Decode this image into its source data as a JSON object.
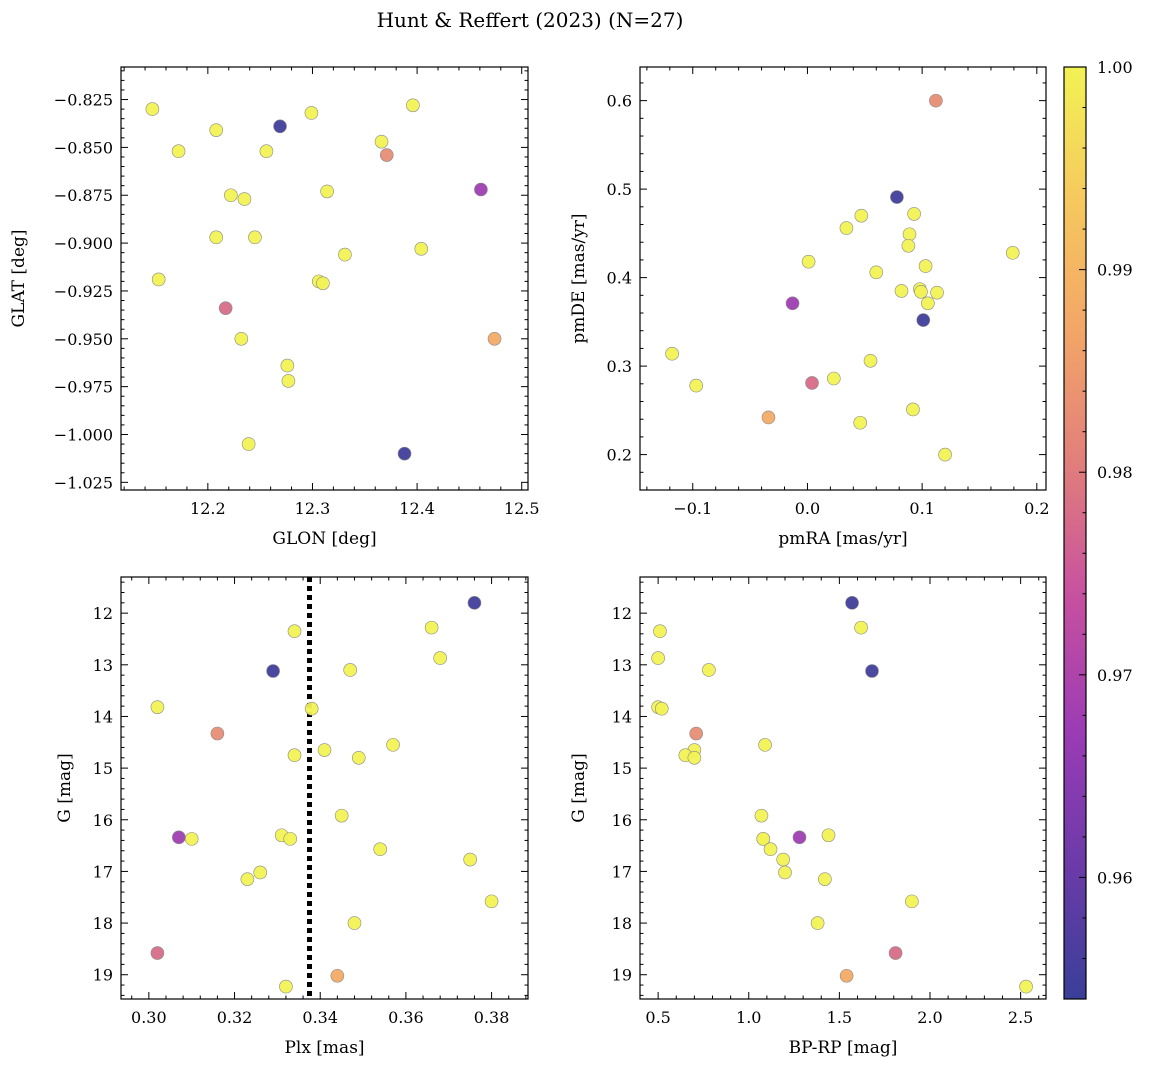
{
  "title": "Hunt & Reffert (2023) (N=27)",
  "colorbar": {
    "min": 0.954,
    "max": 1.0,
    "ticks": [
      0.96,
      0.97,
      0.98,
      0.99,
      1.0
    ],
    "tick_labels": [
      "0.96",
      "0.97",
      "0.98",
      "0.99",
      "1.00"
    ],
    "colormap": "plasma",
    "colors": [
      "#3a3f99",
      "#6a3ba8",
      "#993bb5",
      "#c650a0",
      "#e07d7c",
      "#f2a468",
      "#f6c95e",
      "#f2f254"
    ]
  },
  "stars": [
    {
      "glon": 12.147,
      "glat": -0.83,
      "pmra": -0.118,
      "pmde": 0.314,
      "plx": 0.302,
      "g": 13.82,
      "bprp": 0.5,
      "prob": 1.0
    },
    {
      "glon": 12.172,
      "glat": -0.852,
      "pmra": -0.097,
      "pmde": 0.278,
      "plx": 0.334,
      "g": 12.35,
      "bprp": 0.51,
      "prob": 1.0
    },
    {
      "glon": 12.208,
      "glat": -0.841,
      "pmra": 0.034,
      "pmde": 0.456,
      "plx": 0.347,
      "g": 13.1,
      "bprp": 0.78,
      "prob": 1.0
    },
    {
      "glon": 12.256,
      "glat": -0.852,
      "pmra": 0.047,
      "pmde": 0.47,
      "plx": 0.366,
      "g": 12.28,
      "bprp": 1.62,
      "prob": 1.0
    },
    {
      "glon": 12.299,
      "glat": -0.832,
      "pmra": 0.001,
      "pmde": 0.418,
      "plx": 0.368,
      "g": 12.87,
      "bprp": 0.5,
      "prob": 1.0
    },
    {
      "glon": 12.366,
      "glat": -0.847,
      "pmra": 0.093,
      "pmde": 0.472,
      "plx": 0.338,
      "g": 13.85,
      "bprp": 0.52,
      "prob": 1.0
    },
    {
      "glon": 12.396,
      "glat": -0.828,
      "pmra": 0.089,
      "pmde": 0.449,
      "plx": 0.357,
      "g": 14.55,
      "bprp": 1.09,
      "prob": 1.0
    },
    {
      "glon": 12.222,
      "glat": -0.875,
      "pmra": 0.088,
      "pmde": 0.436,
      "plx": 0.341,
      "g": 14.65,
      "bprp": 0.7,
      "prob": 1.0
    },
    {
      "glon": 12.235,
      "glat": -0.877,
      "pmra": 0.06,
      "pmde": 0.406,
      "plx": 0.334,
      "g": 14.75,
      "bprp": 0.65,
      "prob": 1.0
    },
    {
      "glon": 12.314,
      "glat": -0.873,
      "pmra": 0.103,
      "pmde": 0.413,
      "plx": 0.349,
      "g": 14.8,
      "bprp": 0.7,
      "prob": 1.0
    },
    {
      "glon": 12.208,
      "glat": -0.897,
      "pmra": 0.082,
      "pmde": 0.385,
      "plx": 0.345,
      "g": 15.92,
      "bprp": 1.07,
      "prob": 1.0
    },
    {
      "glon": 12.245,
      "glat": -0.897,
      "pmra": 0.098,
      "pmde": 0.387,
      "plx": 0.331,
      "g": 16.3,
      "bprp": 1.44,
      "prob": 1.0
    },
    {
      "glon": 12.153,
      "glat": -0.919,
      "pmra": 0.099,
      "pmde": 0.384,
      "plx": 0.31,
      "g": 16.37,
      "bprp": 1.08,
      "prob": 1.0
    },
    {
      "glon": 12.331,
      "glat": -0.906,
      "pmra": 0.113,
      "pmde": 0.383,
      "plx": 0.333,
      "g": 16.37,
      "bprp": 1.08,
      "prob": 1.0
    },
    {
      "glon": 12.404,
      "glat": -0.903,
      "pmra": 0.105,
      "pmde": 0.371,
      "plx": 0.354,
      "g": 16.57,
      "bprp": 1.12,
      "prob": 1.0
    },
    {
      "glon": 12.306,
      "glat": -0.92,
      "pmra": 0.179,
      "pmde": 0.428,
      "plx": 0.375,
      "g": 16.77,
      "bprp": 1.19,
      "prob": 1.0
    },
    {
      "glon": 12.31,
      "glat": -0.921,
      "pmra": 0.055,
      "pmde": 0.306,
      "plx": 0.326,
      "g": 17.02,
      "bprp": 1.2,
      "prob": 1.0
    },
    {
      "glon": 12.232,
      "glat": -0.95,
      "pmra": 0.023,
      "pmde": 0.286,
      "plx": 0.323,
      "g": 17.15,
      "bprp": 1.42,
      "prob": 1.0
    },
    {
      "glon": 12.276,
      "glat": -0.964,
      "pmra": 0.092,
      "pmde": 0.251,
      "plx": 0.38,
      "g": 17.58,
      "bprp": 1.9,
      "prob": 1.0
    },
    {
      "glon": 12.277,
      "glat": -0.972,
      "pmra": 0.046,
      "pmde": 0.236,
      "plx": 0.348,
      "g": 18.0,
      "bprp": 1.38,
      "prob": 1.0
    },
    {
      "glon": 12.239,
      "glat": -1.005,
      "pmra": 0.12,
      "pmde": 0.2,
      "plx": 0.332,
      "g": 19.23,
      "bprp": 2.53,
      "prob": 1.0
    },
    {
      "glon": 12.269,
      "glat": -0.839,
      "pmra": 0.078,
      "pmde": 0.491,
      "plx": 0.376,
      "g": 11.8,
      "bprp": 1.57,
      "prob": 0.955
    },
    {
      "glon": 12.388,
      "glat": -1.01,
      "pmra": 0.101,
      "pmde": 0.352,
      "plx": 0.329,
      "g": 13.12,
      "bprp": 1.68,
      "prob": 0.955
    },
    {
      "glon": 12.461,
      "glat": -0.872,
      "pmra": -0.013,
      "pmde": 0.371,
      "plx": 0.307,
      "g": 16.34,
      "bprp": 1.28,
      "prob": 0.968
    },
    {
      "glon": 12.217,
      "glat": -0.934,
      "pmra": 0.004,
      "pmde": 0.281,
      "plx": 0.302,
      "g": 18.58,
      "bprp": 1.81,
      "prob": 0.978
    },
    {
      "glon": 12.371,
      "glat": -0.854,
      "pmra": 0.112,
      "pmde": 0.6,
      "plx": 0.316,
      "g": 14.33,
      "bprp": 0.71,
      "prob": 0.983
    },
    {
      "glon": 12.474,
      "glat": -0.95,
      "pmra": -0.034,
      "pmde": 0.242,
      "plx": 0.344,
      "g": 19.02,
      "bprp": 1.54,
      "prob": 0.988
    }
  ],
  "chart_data": [
    {
      "type": "scatter",
      "x_field": "glon",
      "y_field": "glat",
      "xlabel": "GLON [deg]",
      "ylabel": "GLAT [deg]",
      "xlim": [
        12.117,
        12.506
      ],
      "ylim": [
        -1.029,
        -0.808
      ],
      "xticks": [
        12.2,
        12.3,
        12.4,
        12.5
      ],
      "xtick_labels": [
        "12.2",
        "12.3",
        "12.4",
        "12.5"
      ],
      "yticks": [
        -0.825,
        -0.85,
        -0.875,
        -0.9,
        -0.925,
        -0.95,
        -0.975,
        -1.0,
        -1.025
      ],
      "ytick_labels": [
        "−0.825",
        "−0.850",
        "−0.875",
        "−0.900",
        "−0.925",
        "−0.950",
        "−0.975",
        "−1.000",
        "−1.025"
      ],
      "y_inverted": false
    },
    {
      "type": "scatter",
      "x_field": "pmra",
      "y_field": "pmde",
      "xlabel": "pmRA [mas/yr]",
      "ylabel": "pmDE [mas/yr]",
      "xlim": [
        -0.146,
        0.208
      ],
      "ylim": [
        0.16,
        0.638
      ],
      "xticks": [
        -0.1,
        0.0,
        0.1,
        0.2
      ],
      "xtick_labels": [
        "−0.1",
        "0.0",
        "0.1",
        "0.2"
      ],
      "yticks": [
        0.2,
        0.3,
        0.4,
        0.5,
        0.6
      ],
      "ytick_labels": [
        "0.2",
        "0.3",
        "0.4",
        "0.5",
        "0.6"
      ],
      "y_inverted": false
    },
    {
      "type": "scatter",
      "x_field": "plx",
      "y_field": "g",
      "xlabel": "Plx [mas]",
      "ylabel": "G [mag]",
      "xlim": [
        0.2935,
        0.3885
      ],
      "ylim": [
        19.47,
        11.3
      ],
      "xticks": [
        0.3,
        0.32,
        0.34,
        0.36,
        0.38
      ],
      "xtick_labels": [
        "0.30",
        "0.32",
        "0.34",
        "0.36",
        "0.38"
      ],
      "yticks": [
        12,
        13,
        14,
        15,
        16,
        17,
        18,
        19
      ],
      "ytick_labels": [
        "12",
        "13",
        "14",
        "15",
        "16",
        "17",
        "18",
        "19"
      ],
      "y_inverted": true,
      "vline": 0.3375
    },
    {
      "type": "scatter",
      "x_field": "bprp",
      "y_field": "g",
      "xlabel": "BP-RP [mag]",
      "ylabel": "G [mag]",
      "xlim": [
        0.4,
        2.64
      ],
      "ylim": [
        19.47,
        11.3
      ],
      "xticks": [
        0.5,
        1.0,
        1.5,
        2.0,
        2.5
      ],
      "xtick_labels": [
        "0.5",
        "1.0",
        "1.5",
        "2.0",
        "2.5"
      ],
      "yticks": [
        12,
        13,
        14,
        15,
        16,
        17,
        18,
        19
      ],
      "ytick_labels": [
        "12",
        "13",
        "14",
        "15",
        "16",
        "17",
        "18",
        "19"
      ],
      "y_inverted": true
    }
  ]
}
